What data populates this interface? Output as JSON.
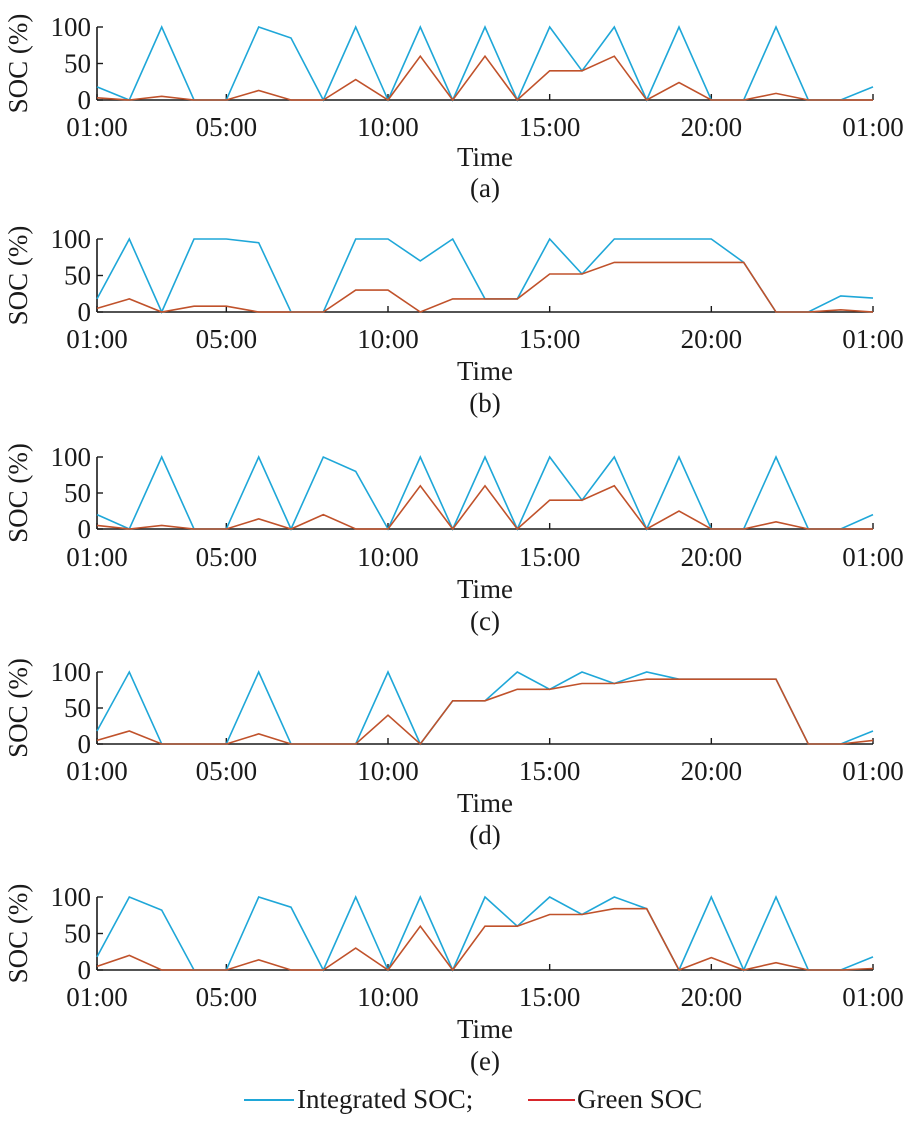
{
  "chart_data": [
    {
      "type": "line",
      "panel_label": "(a)",
      "xlabel": "Time",
      "ylabel": "SOC (%)",
      "x_ticks": [
        "01:00",
        "05:00",
        "10:00",
        "15:00",
        "20:00",
        "01:00"
      ],
      "y_ticks": [
        "0",
        "50",
        "100"
      ],
      "ylim": [
        0,
        100
      ],
      "x": [
        "01:00",
        "02:00",
        "03:00",
        "04:00",
        "05:00",
        "06:00",
        "07:00",
        "08:00",
        "09:00",
        "10:00",
        "11:00",
        "12:00",
        "13:00",
        "14:00",
        "15:00",
        "16:00",
        "17:00",
        "18:00",
        "19:00",
        "20:00",
        "21:00",
        "22:00",
        "23:00",
        "24:00",
        "01:00"
      ],
      "series": [
        {
          "name": "Integrated SOC",
          "color": "#1fa7d8",
          "values": [
            18,
            0,
            100,
            0,
            0,
            100,
            85,
            0,
            100,
            0,
            100,
            0,
            100,
            0,
            100,
            40,
            100,
            0,
            100,
            0,
            0,
            100,
            0,
            0,
            18
          ]
        },
        {
          "name": "Green SOC",
          "color": "#c0522b",
          "values": [
            3,
            0,
            5,
            0,
            0,
            13,
            0,
            0,
            28,
            0,
            60,
            0,
            60,
            0,
            40,
            40,
            60,
            0,
            24,
            0,
            0,
            9,
            0,
            0,
            0
          ]
        }
      ]
    },
    {
      "type": "line",
      "panel_label": "(b)",
      "xlabel": "Time",
      "ylabel": "SOC (%)",
      "x_ticks": [
        "01:00",
        "05:00",
        "10:00",
        "15:00",
        "20:00",
        "01:00"
      ],
      "y_ticks": [
        "0",
        "50",
        "100"
      ],
      "ylim": [
        0,
        100
      ],
      "x": [
        "01:00",
        "02:00",
        "03:00",
        "04:00",
        "05:00",
        "06:00",
        "07:00",
        "08:00",
        "09:00",
        "10:00",
        "11:00",
        "12:00",
        "13:00",
        "14:00",
        "15:00",
        "16:00",
        "17:00",
        "18:00",
        "19:00",
        "20:00",
        "21:00",
        "22:00",
        "23:00",
        "24:00",
        "01:00"
      ],
      "series": [
        {
          "name": "Integrated SOC",
          "color": "#1fa7d8",
          "values": [
            18,
            100,
            0,
            100,
            100,
            95,
            0,
            0,
            100,
            100,
            70,
            100,
            18,
            18,
            100,
            52,
            100,
            100,
            100,
            100,
            68,
            0,
            0,
            22,
            19
          ]
        },
        {
          "name": "Green SOC",
          "color": "#c0522b",
          "values": [
            5,
            18,
            0,
            8,
            8,
            0,
            0,
            0,
            30,
            30,
            0,
            18,
            18,
            18,
            52,
            52,
            68,
            68,
            68,
            68,
            68,
            0,
            0,
            3,
            0
          ]
        }
      ]
    },
    {
      "type": "line",
      "panel_label": "(c)",
      "xlabel": "Time",
      "ylabel": "SOC (%)",
      "x_ticks": [
        "01:00",
        "05:00",
        "10:00",
        "15:00",
        "20:00",
        "01:00"
      ],
      "y_ticks": [
        "0",
        "50",
        "100"
      ],
      "ylim": [
        0,
        100
      ],
      "x": [
        "01:00",
        "02:00",
        "03:00",
        "04:00",
        "05:00",
        "06:00",
        "07:00",
        "08:00",
        "09:00",
        "10:00",
        "11:00",
        "12:00",
        "13:00",
        "14:00",
        "15:00",
        "16:00",
        "17:00",
        "18:00",
        "19:00",
        "20:00",
        "21:00",
        "22:00",
        "23:00",
        "24:00",
        "01:00"
      ],
      "series": [
        {
          "name": "Integrated SOC",
          "color": "#1fa7d8",
          "values": [
            20,
            0,
            100,
            0,
            0,
            100,
            0,
            100,
            80,
            0,
            100,
            0,
            100,
            0,
            100,
            40,
            100,
            0,
            100,
            0,
            0,
            100,
            0,
            0,
            20
          ]
        },
        {
          "name": "Green SOC",
          "color": "#c0522b",
          "values": [
            5,
            0,
            5,
            0,
            0,
            14,
            0,
            20,
            0,
            0,
            60,
            0,
            60,
            0,
            40,
            40,
            60,
            0,
            25,
            0,
            0,
            10,
            0,
            0,
            0
          ]
        }
      ]
    },
    {
      "type": "line",
      "panel_label": "(d)",
      "xlabel": "Time",
      "ylabel": "SOC (%)",
      "x_ticks": [
        "01:00",
        "05:00",
        "10:00",
        "15:00",
        "20:00",
        "01:00"
      ],
      "y_ticks": [
        "0",
        "50",
        "100"
      ],
      "ylim": [
        0,
        100
      ],
      "x": [
        "01:00",
        "02:00",
        "03:00",
        "04:00",
        "05:00",
        "06:00",
        "07:00",
        "08:00",
        "09:00",
        "10:00",
        "11:00",
        "12:00",
        "13:00",
        "14:00",
        "15:00",
        "16:00",
        "17:00",
        "18:00",
        "19:00",
        "20:00",
        "21:00",
        "22:00",
        "23:00",
        "24:00",
        "01:00"
      ],
      "series": [
        {
          "name": "Integrated SOC",
          "color": "#1fa7d8",
          "values": [
            18,
            100,
            0,
            0,
            0,
            100,
            0,
            0,
            0,
            100,
            0,
            60,
            60,
            100,
            76,
            100,
            84,
            100,
            90,
            90,
            90,
            90,
            0,
            0,
            18
          ]
        },
        {
          "name": "Green SOC",
          "color": "#c0522b",
          "values": [
            5,
            18,
            0,
            0,
            0,
            14,
            0,
            0,
            0,
            40,
            0,
            60,
            60,
            76,
            76,
            84,
            84,
            90,
            90,
            90,
            90,
            90,
            0,
            0,
            5
          ]
        }
      ]
    },
    {
      "type": "line",
      "panel_label": "(e)",
      "xlabel": "Time",
      "ylabel": "SOC (%)",
      "x_ticks": [
        "01:00",
        "05:00",
        "10:00",
        "15:00",
        "20:00",
        "01:00"
      ],
      "y_ticks": [
        "0",
        "50",
        "100"
      ],
      "ylim": [
        0,
        100
      ],
      "x": [
        "01:00",
        "02:00",
        "03:00",
        "04:00",
        "05:00",
        "06:00",
        "07:00",
        "08:00",
        "09:00",
        "10:00",
        "11:00",
        "12:00",
        "13:00",
        "14:00",
        "15:00",
        "16:00",
        "17:00",
        "18:00",
        "19:00",
        "20:00",
        "21:00",
        "22:00",
        "23:00",
        "24:00",
        "01:00"
      ],
      "series": [
        {
          "name": "Integrated SOC",
          "color": "#1fa7d8",
          "values": [
            18,
            100,
            82,
            0,
            0,
            100,
            86,
            0,
            100,
            0,
            100,
            0,
            100,
            60,
            100,
            76,
            100,
            84,
            0,
            100,
            0,
            100,
            0,
            0,
            18
          ]
        },
        {
          "name": "Green SOC",
          "color": "#c0522b",
          "values": [
            5,
            20,
            0,
            0,
            0,
            14,
            0,
            0,
            30,
            0,
            60,
            0,
            60,
            60,
            76,
            76,
            84,
            84,
            0,
            17,
            0,
            10,
            0,
            0,
            2
          ]
        }
      ]
    }
  ],
  "legend": {
    "items": [
      {
        "label": "Integrated SOC;",
        "color": "#1fa7d8"
      },
      {
        "label": "Green SOC",
        "color": "#d7262b"
      }
    ]
  }
}
